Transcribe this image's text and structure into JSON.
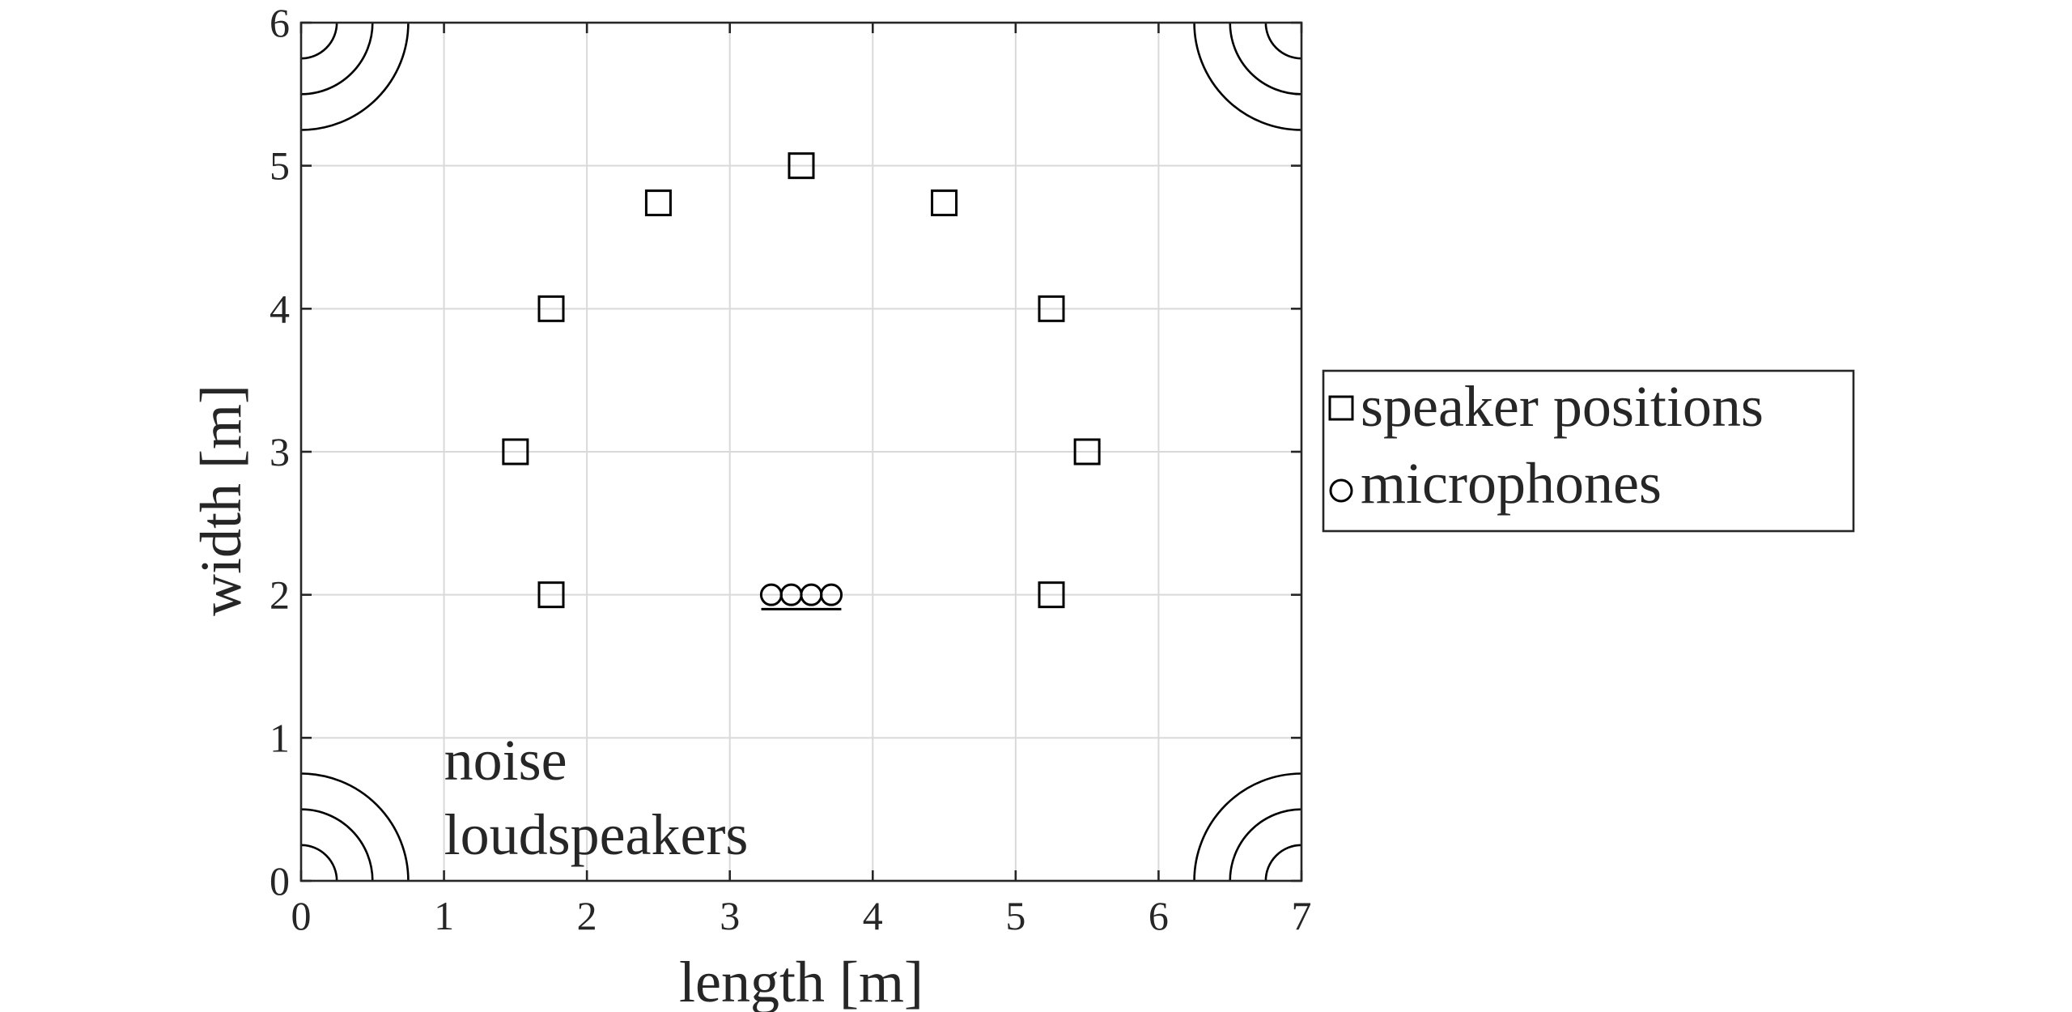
{
  "chart_data": {
    "type": "scatter",
    "title": "",
    "xlabel": "length [m]",
    "ylabel": "width [m]",
    "xlim": [
      0,
      7
    ],
    "ylim": [
      0,
      6
    ],
    "xticks": [
      "0",
      "1",
      "2",
      "3",
      "4",
      "5",
      "6",
      "7"
    ],
    "yticks": [
      "0",
      "1",
      "2",
      "3",
      "4",
      "5",
      "6"
    ],
    "grid": true,
    "legend_placement": "outside-right",
    "series": [
      {
        "name": "speaker positions",
        "marker": "square",
        "points": [
          {
            "x": 1.75,
            "y": 2.0
          },
          {
            "x": 1.5,
            "y": 3.0
          },
          {
            "x": 1.75,
            "y": 4.0
          },
          {
            "x": 2.5,
            "y": 4.74
          },
          {
            "x": 3.5,
            "y": 5.0
          },
          {
            "x": 4.5,
            "y": 4.74
          },
          {
            "x": 5.25,
            "y": 4.0
          },
          {
            "x": 5.5,
            "y": 3.0
          },
          {
            "x": 5.25,
            "y": 2.0
          }
        ]
      },
      {
        "name": "microphones",
        "marker": "circle",
        "points": [
          {
            "x": 3.29,
            "y": 2.0
          },
          {
            "x": 3.43,
            "y": 2.0
          },
          {
            "x": 3.57,
            "y": 2.0
          },
          {
            "x": 3.71,
            "y": 2.0
          }
        ]
      }
    ],
    "microphone_baseline": {
      "x": [
        3.22,
        3.78
      ],
      "y": 1.9
    },
    "noise_loudspeakers": {
      "corners": [
        {
          "x": 0,
          "y": 0
        },
        {
          "x": 7,
          "y": 0
        },
        {
          "x": 0,
          "y": 6
        },
        {
          "x": 7,
          "y": 6
        }
      ],
      "arc_radii": [
        0.25,
        0.5,
        0.75
      ]
    },
    "annotation": {
      "lines": [
        "noise",
        "loudspeakers"
      ],
      "x": 1.0,
      "y": 0.56
    }
  }
}
